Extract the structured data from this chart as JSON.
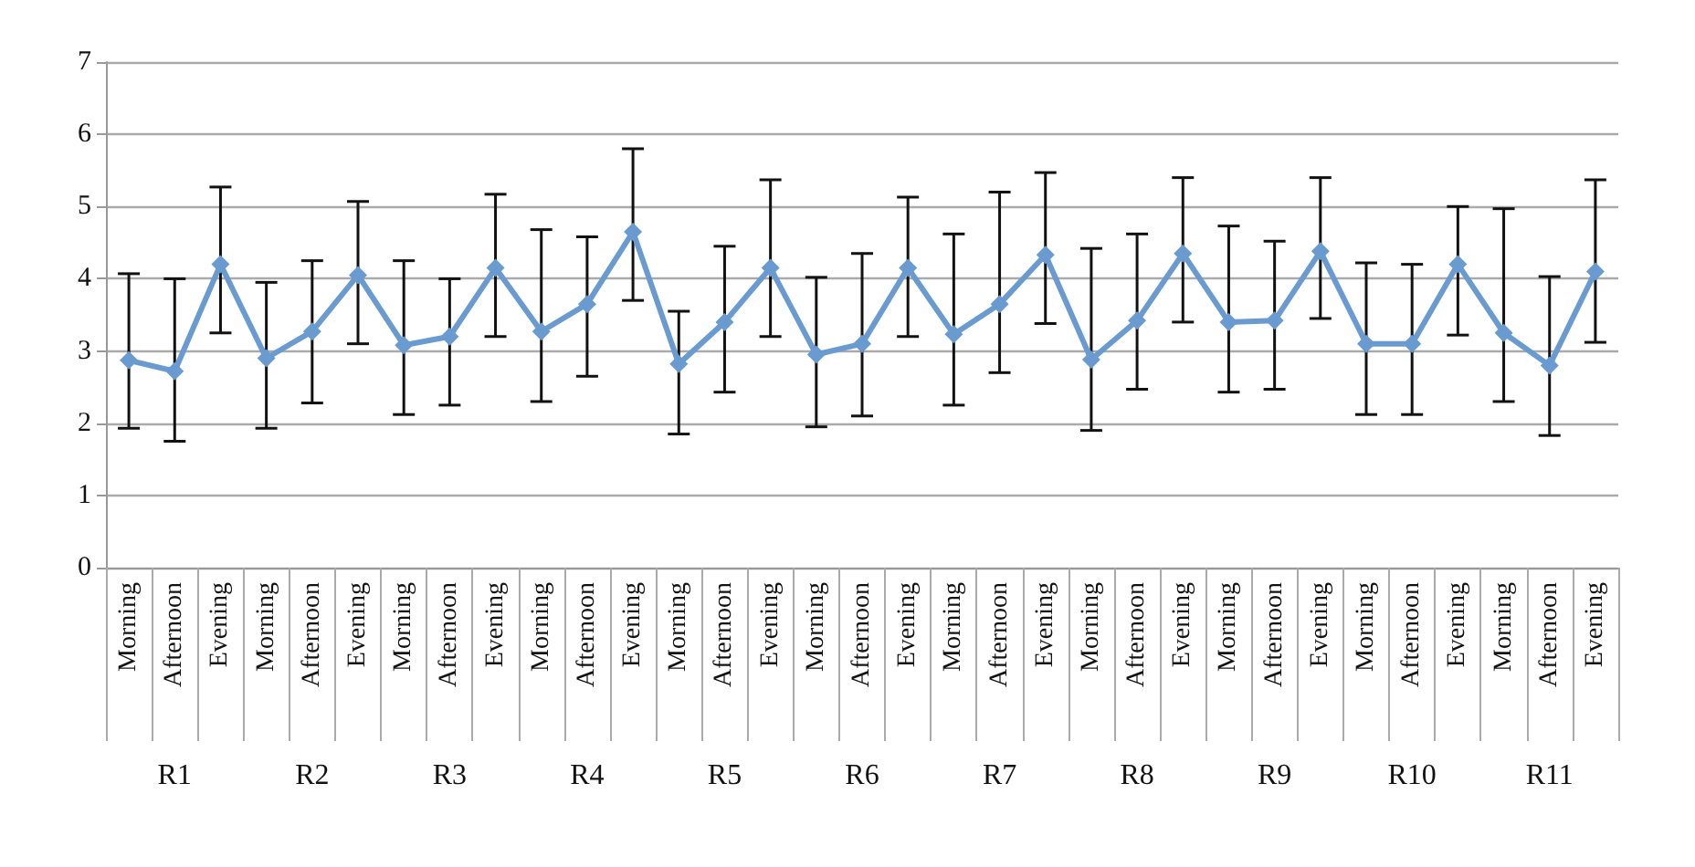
{
  "chart_data": {
    "type": "line",
    "categories": [
      "Morning",
      "Afternoon",
      "Evening",
      "Morning",
      "Afternoon",
      "Evening",
      "Morning",
      "Afternoon",
      "Evening",
      "Morning",
      "Afternoon",
      "Evening",
      "Morning",
      "Afternoon",
      "Evening",
      "Morning",
      "Afternoon",
      "Evening",
      "Morning",
      "Afternoon",
      "Evening",
      "Morning",
      "Afternoon",
      "Evening",
      "Morning",
      "Afternoon",
      "Evening",
      "Morning",
      "Afternoon",
      "Evening",
      "Morning",
      "Afternoon",
      "Evening"
    ],
    "series": [
      {
        "color": "#6a9bd0",
        "values": [
          2.87,
          2.72,
          4.2,
          2.9,
          3.27,
          4.05,
          3.08,
          3.2,
          4.15,
          3.27,
          3.65,
          4.65,
          2.82,
          3.4,
          4.15,
          2.95,
          3.1,
          4.15,
          3.23,
          3.65,
          4.33,
          2.88,
          3.42,
          4.35,
          3.4,
          3.42,
          4.38,
          3.1,
          3.1,
          4.2,
          3.25,
          2.8,
          4.1
        ],
        "errors": [
          [
            1.93,
            4.07
          ],
          [
            1.75,
            4.0
          ],
          [
            3.25,
            5.27
          ],
          [
            1.93,
            3.95
          ],
          [
            2.28,
            4.25
          ],
          [
            3.1,
            5.07
          ],
          [
            2.12,
            4.25
          ],
          [
            2.25,
            4.0
          ],
          [
            3.2,
            5.17
          ],
          [
            2.3,
            4.68
          ],
          [
            2.65,
            4.58
          ],
          [
            3.7,
            5.8
          ],
          [
            1.85,
            3.55
          ],
          [
            2.43,
            4.45
          ],
          [
            3.2,
            5.37
          ],
          [
            1.95,
            4.02
          ],
          [
            2.1,
            4.35
          ],
          [
            3.2,
            5.13
          ],
          [
            2.25,
            4.62
          ],
          [
            2.7,
            5.2
          ],
          [
            3.38,
            5.47
          ],
          [
            1.9,
            4.42
          ],
          [
            2.47,
            4.62
          ],
          [
            3.4,
            5.4
          ],
          [
            2.43,
            4.73
          ],
          [
            2.47,
            4.52
          ],
          [
            3.45,
            5.4
          ],
          [
            2.12,
            4.22
          ],
          [
            2.12,
            4.2
          ],
          [
            3.22,
            5.0
          ],
          [
            2.3,
            4.97
          ],
          [
            1.83,
            4.03
          ],
          [
            3.12,
            5.37
          ]
        ]
      }
    ],
    "annotations": [
      "R1",
      "R2",
      "R3",
      "R4",
      "R5",
      "R6",
      "R7",
      "R8",
      "R9",
      "R10",
      "R11"
    ],
    "ylim": [
      0,
      7
    ],
    "yticks": [
      0,
      1,
      2,
      3,
      4,
      5,
      6,
      7
    ],
    "grid": "y",
    "marker": "diamond",
    "line_style": "solid"
  }
}
